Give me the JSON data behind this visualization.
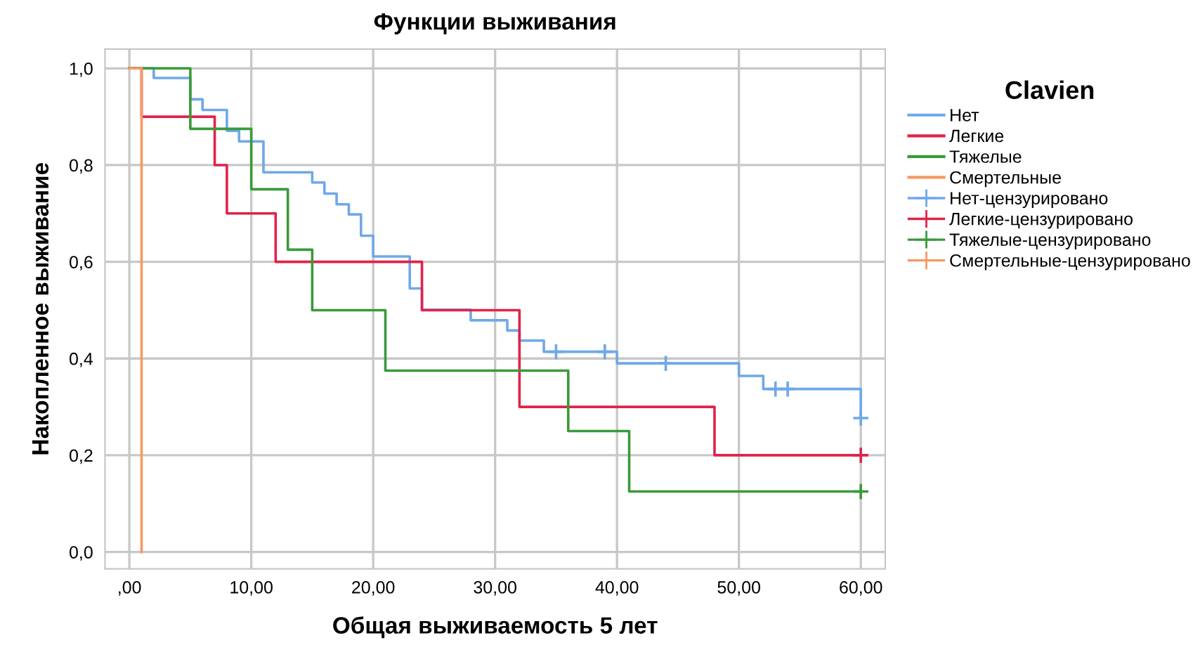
{
  "chart_data": {
    "type": "step",
    "title": "Функции выживания",
    "xlabel": "Общая выживаемость 5 лет",
    "ylabel": "Накопленное выживание",
    "legend_title": "Clavien",
    "legend": "right",
    "grid": true,
    "xlim": [
      -2,
      62
    ],
    "ylim": [
      -0.035,
      1.04
    ],
    "xticks": [
      {
        "value": 0,
        "label": ",00"
      },
      {
        "value": 10,
        "label": "10,00"
      },
      {
        "value": 20,
        "label": "20,00"
      },
      {
        "value": 30,
        "label": "30,00"
      },
      {
        "value": 40,
        "label": "40,00"
      },
      {
        "value": 50,
        "label": "50,00"
      },
      {
        "value": 60,
        "label": "60,00"
      }
    ],
    "yticks": [
      {
        "value": 0,
        "label": "0,0"
      },
      {
        "value": 0.2,
        "label": "0,2"
      },
      {
        "value": 0.4,
        "label": "0,4"
      },
      {
        "value": 0.6,
        "label": "0,6"
      },
      {
        "value": 0.8,
        "label": "0,8"
      },
      {
        "value": 1.0,
        "label": "1,0"
      }
    ],
    "series": [
      {
        "name": "Нет",
        "color": "#6fa8e8",
        "x": [
          0,
          2,
          5,
          6,
          8,
          9,
          11,
          15,
          16,
          17,
          18,
          19,
          20,
          23,
          24,
          28,
          31,
          32,
          34,
          40,
          50,
          52,
          60
        ],
        "values": [
          1.0,
          0.98,
          0.936,
          0.914,
          0.871,
          0.849,
          0.785,
          0.764,
          0.741,
          0.719,
          0.698,
          0.654,
          0.611,
          0.545,
          0.501,
          0.479,
          0.458,
          0.437,
          0.414,
          0.39,
          0.364,
          0.337,
          0.277
        ]
      },
      {
        "name": "Легкие",
        "color": "#e0234a",
        "x": [
          0,
          1,
          7,
          8,
          12,
          24,
          32,
          48,
          60
        ],
        "values": [
          1.0,
          0.9,
          0.8,
          0.7,
          0.6,
          0.5,
          0.3,
          0.2,
          0.2
        ]
      },
      {
        "name": "Тяжелые",
        "color": "#3a9a3a",
        "x": [
          0,
          5,
          10,
          13,
          15,
          21,
          36,
          41,
          60
        ],
        "values": [
          1.0,
          0.875,
          0.75,
          0.625,
          0.5,
          0.375,
          0.25,
          0.125,
          0.125
        ]
      },
      {
        "name": "Смертельные",
        "color": "#f59a62",
        "x": [
          0,
          1
        ],
        "values": [
          1.0,
          0.0
        ]
      },
      {
        "name": "Нет-цензурировано",
        "type": "scatter",
        "marker": "cross",
        "color": "#6fa8e8",
        "x": [
          35,
          39,
          44,
          53,
          54,
          60
        ],
        "values": [
          0.414,
          0.414,
          0.39,
          0.337,
          0.337,
          0.277
        ]
      },
      {
        "name": "Легкие-цензурировано",
        "type": "scatter",
        "marker": "cross",
        "color": "#e0234a",
        "x": [
          60
        ],
        "values": [
          0.2
        ]
      },
      {
        "name": "Тяжелые-цензурировано",
        "type": "scatter",
        "marker": "cross",
        "color": "#3a9a3a",
        "x": [
          60
        ],
        "values": [
          0.125
        ]
      },
      {
        "name": "Смертельные-цензурировано",
        "type": "scatter",
        "marker": "cross",
        "color": "#f59a62"
      }
    ]
  }
}
